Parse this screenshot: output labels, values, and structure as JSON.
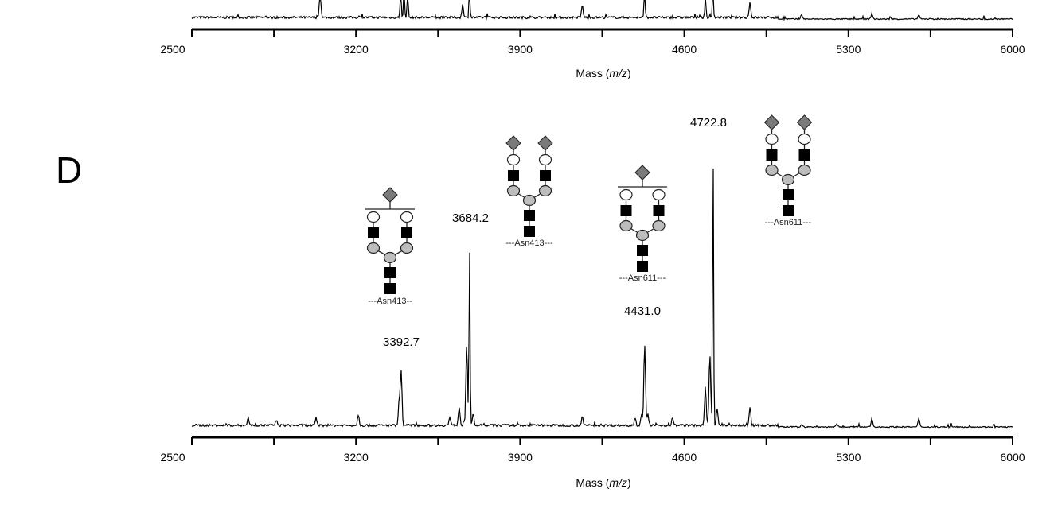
{
  "chart_data": [
    {
      "type": "line",
      "panel": "upper (partially visible)",
      "title": "",
      "xlabel": "Mass (m/z)",
      "xlabel_main": "Mass (",
      "xlabel_italic": "m/z",
      "xlabel_close": ")",
      "xlim": [
        2500,
        6000
      ],
      "xticks": [
        2500,
        3200,
        3900,
        4600,
        5300,
        6000
      ],
      "xtick_labels": [
        "2500",
        "3200",
        "3900",
        "4600",
        "5300",
        "6000"
      ],
      "minor_tick_step": 350,
      "peaks": [
        {
          "mz": 3047,
          "intensity": 40
        },
        {
          "mz": 3390,
          "intensity": 60
        },
        {
          "mz": 3405,
          "intensity": 60
        },
        {
          "mz": 3420,
          "intensity": 60
        },
        {
          "mz": 3655,
          "intensity": 22
        },
        {
          "mz": 3684,
          "intensity": 60
        },
        {
          "mz": 4165,
          "intensity": 20
        },
        {
          "mz": 4431,
          "intensity": 60
        },
        {
          "mz": 4690,
          "intensity": 45
        },
        {
          "mz": 4722,
          "intensity": 60
        },
        {
          "mz": 4880,
          "intensity": 25
        },
        {
          "mz": 5100,
          "intensity": 8
        },
        {
          "mz": 5400,
          "intensity": 9
        },
        {
          "mz": 5600,
          "intensity": 7
        }
      ]
    },
    {
      "type": "line",
      "panel": "D",
      "panel_label": "D",
      "title": "",
      "xlabel": "Mass (m/z)",
      "xlabel_main": "Mass (",
      "xlabel_italic": "m/z",
      "xlabel_close": ")",
      "ylabel": "",
      "xlim": [
        2500,
        6000
      ],
      "ylim": [
        0,
        100
      ],
      "xticks": [
        2500,
        3200,
        3900,
        4600,
        5300,
        6000
      ],
      "xtick_labels": [
        "2500",
        "3200",
        "3900",
        "4600",
        "5300",
        "6000"
      ],
      "minor_tick_step": 350,
      "peaks": [
        {
          "mz": 2740,
          "intensity": 3
        },
        {
          "mz": 2860,
          "intensity": 2
        },
        {
          "mz": 3030,
          "intensity": 2
        },
        {
          "mz": 3210,
          "intensity": 4
        },
        {
          "mz": 3384,
          "intensity": 9
        },
        {
          "mz": 3392.7,
          "intensity": 20
        },
        {
          "mz": 3600,
          "intensity": 3
        },
        {
          "mz": 3640,
          "intensity": 7
        },
        {
          "mz": 3672,
          "intensity": 30
        },
        {
          "mz": 3684.2,
          "intensity": 66
        },
        {
          "mz": 3700,
          "intensity": 4
        },
        {
          "mz": 4165,
          "intensity": 3
        },
        {
          "mz": 4390,
          "intensity": 3
        },
        {
          "mz": 4418,
          "intensity": 4
        },
        {
          "mz": 4431.0,
          "intensity": 30
        },
        {
          "mz": 4445,
          "intensity": 4
        },
        {
          "mz": 4550,
          "intensity": 3
        },
        {
          "mz": 4690,
          "intensity": 14
        },
        {
          "mz": 4709,
          "intensity": 26
        },
        {
          "mz": 4722.8,
          "intensity": 100
        },
        {
          "mz": 4740,
          "intensity": 6
        },
        {
          "mz": 4880,
          "intensity": 7
        },
        {
          "mz": 5100,
          "intensity": 1
        },
        {
          "mz": 5250,
          "intensity": 1
        },
        {
          "mz": 5400,
          "intensity": 3
        },
        {
          "mz": 5600,
          "intensity": 3
        }
      ],
      "annotations": [
        {
          "mz": 3392.7,
          "label": "3392.7",
          "glycan": "monosialylated biantennary",
          "site": "---Asn413--"
        },
        {
          "mz": 3684.2,
          "label": "3684.2",
          "glycan": "disialylated biantennary",
          "site": "---Asn413---"
        },
        {
          "mz": 4431.0,
          "label": "4431.0",
          "glycan": "monosialylated biantennary",
          "site": "---Asn611---"
        },
        {
          "mz": 4722.8,
          "label": "4722.8",
          "glycan": "disialylated biantennary",
          "site": "---Asn611---"
        }
      ]
    }
  ],
  "colors": {
    "line": "#000000",
    "sialic_acid": "#7a7a7a",
    "galactose": "#ffffff",
    "glcnac": "#000000",
    "mannose": "#bdbdbd"
  }
}
